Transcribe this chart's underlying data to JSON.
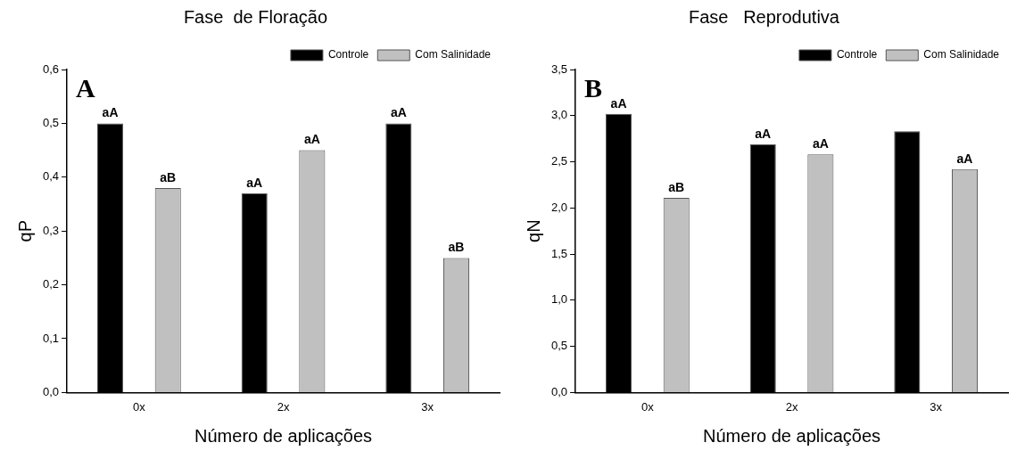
{
  "chart_data": [
    {
      "type": "bar",
      "title": "Fase  de Floração",
      "xlabel": "Número de aplicações",
      "ylabel": "qP",
      "categories": [
        "0x",
        "2x",
        "3x"
      ],
      "series": [
        {
          "name": "Controle",
          "color": "#000000",
          "values": [
            0.5,
            0.37,
            0.5
          ],
          "value_labels": [
            "aA",
            "aA",
            "aA"
          ]
        },
        {
          "name": "Com Salinidade",
          "color": "#c0c0c0",
          "values": [
            0.38,
            0.45,
            0.25
          ],
          "value_labels": [
            "aB",
            "aA",
            "aB"
          ]
        }
      ],
      "ylim": [
        0,
        0.6
      ],
      "yticks": [
        {
          "value": 0,
          "label": "0,0"
        },
        {
          "value": 0.1,
          "label": "0,1"
        },
        {
          "value": 0.2,
          "label": "0,2"
        },
        {
          "value": 0.3,
          "label": "0,3"
        },
        {
          "value": 0.4,
          "label": "0,4"
        },
        {
          "value": 0.5,
          "label": "0,5"
        },
        {
          "value": 0.6,
          "label": "0,6"
        }
      ],
      "grid": false,
      "legend": "top right",
      "annotations": [
        "A"
      ]
    },
    {
      "type": "bar",
      "title": "Fase   Reprodutiva",
      "xlabel": "Número de aplicações",
      "ylabel": "qN",
      "categories": [
        "0x",
        "2x",
        "3x"
      ],
      "series": [
        {
          "name": "Controle",
          "color": "#000000",
          "values": [
            3.02,
            2.69,
            2.83
          ],
          "value_labels": [
            "aA",
            "aA",
            null
          ]
        },
        {
          "name": "Com Salinidade",
          "color": "#c0c0c0",
          "values": [
            2.11,
            2.58,
            2.42
          ],
          "value_labels": [
            "aB",
            "aA",
            "aA"
          ]
        }
      ],
      "ylim": [
        0,
        3.5
      ],
      "yticks": [
        {
          "value": 0,
          "label": "0,0"
        },
        {
          "value": 0.5,
          "label": "0,5"
        },
        {
          "value": 1,
          "label": "1,0"
        },
        {
          "value": 1.5,
          "label": "1,5"
        },
        {
          "value": 2,
          "label": "2,0"
        },
        {
          "value": 2.5,
          "label": "2,5"
        },
        {
          "value": 3,
          "label": "3,0"
        },
        {
          "value": 3.5,
          "label": "3,5"
        }
      ],
      "grid": false,
      "legend": "top right",
      "annotations": [
        "B"
      ]
    }
  ]
}
